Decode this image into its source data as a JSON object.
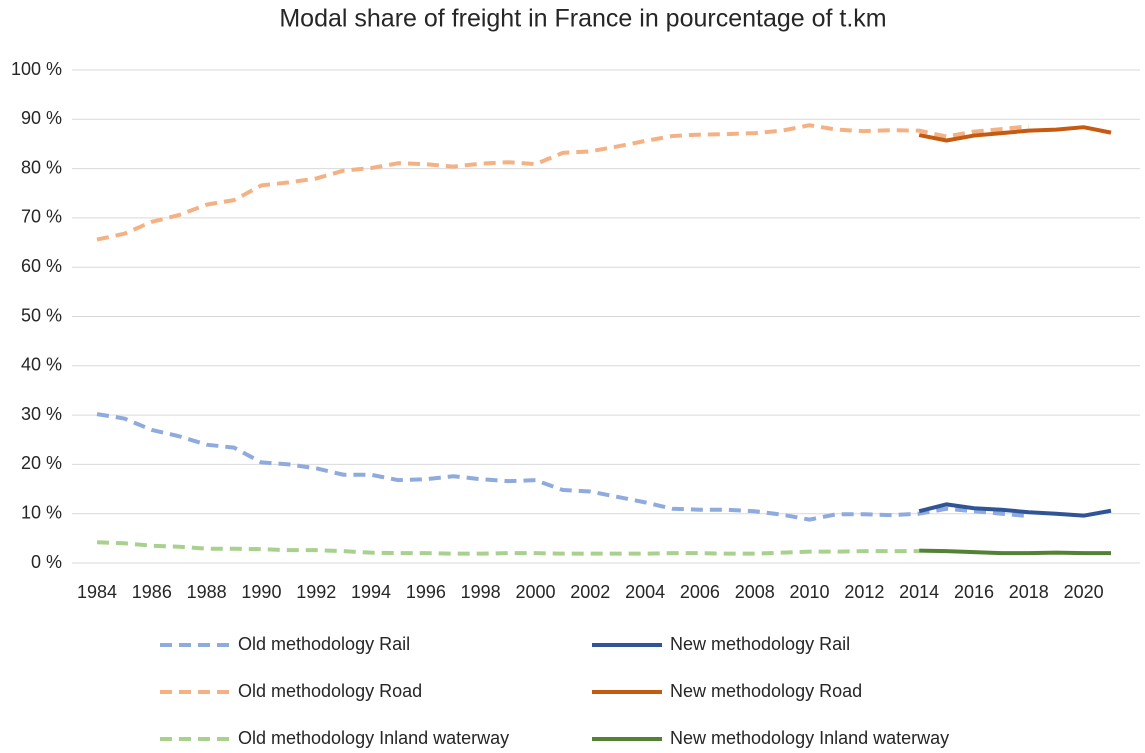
{
  "chart_data": {
    "type": "line",
    "title": "Modal share of freight in France in pourcentage of t.km",
    "x": [
      1984,
      1985,
      1986,
      1987,
      1988,
      1989,
      1990,
      1991,
      1992,
      1993,
      1994,
      1995,
      1996,
      1997,
      1998,
      1999,
      2000,
      2001,
      2002,
      2003,
      2004,
      2005,
      2006,
      2007,
      2008,
      2009,
      2010,
      2011,
      2012,
      2013,
      2014,
      2015,
      2016,
      2017,
      2018,
      2019,
      2020,
      2021
    ],
    "xlim": [
      1984,
      2021
    ],
    "xticks": [
      1984,
      1986,
      1988,
      1990,
      1992,
      1994,
      1996,
      1998,
      2000,
      2002,
      2004,
      2006,
      2008,
      2010,
      2012,
      2014,
      2016,
      2018,
      2020
    ],
    "ylim": [
      0,
      100
    ],
    "yticks": [
      {
        "value": 0,
        "label": "0 %"
      },
      {
        "value": 10,
        "label": "10 %"
      },
      {
        "value": 20,
        "label": "20 %"
      },
      {
        "value": 30,
        "label": "30 %"
      },
      {
        "value": 40,
        "label": "40 %"
      },
      {
        "value": 50,
        "label": "50 %"
      },
      {
        "value": 60,
        "label": "60 %"
      },
      {
        "value": 70,
        "label": "70 %"
      },
      {
        "value": 80,
        "label": "80 %"
      },
      {
        "value": 90,
        "label": "90 %"
      },
      {
        "value": 100,
        "label": "100 %"
      }
    ],
    "grid": true,
    "legend": "bottom",
    "series": [
      {
        "name": "Old methodology Rail",
        "color": "#8faadc",
        "dashed": true,
        "values": [
          30.2,
          29.3,
          27,
          25.7,
          24,
          23.4,
          20.4,
          20,
          19.2,
          17.9,
          17.9,
          16.8,
          17,
          17.6,
          17,
          16.6,
          16.8,
          14.8,
          14.5,
          13.4,
          12.3,
          11,
          10.8,
          10.8,
          10.5,
          9.8,
          8.8,
          9.9,
          9.9,
          9.7,
          10,
          11,
          10.5,
          10,
          9.5,
          null,
          null,
          null
        ]
      },
      {
        "name": "New methodology Rail",
        "color": "#2f5597",
        "dashed": false,
        "values": [
          null,
          null,
          null,
          null,
          null,
          null,
          null,
          null,
          null,
          null,
          null,
          null,
          null,
          null,
          null,
          null,
          null,
          null,
          null,
          null,
          null,
          null,
          null,
          null,
          null,
          null,
          null,
          null,
          null,
          null,
          10.5,
          11.9,
          11.1,
          10.8,
          10.3,
          10,
          9.6,
          10.6
        ]
      },
      {
        "name": "Old methodology Road",
        "color": "#f4b183",
        "dashed": true,
        "values": [
          65.6,
          66.8,
          69.2,
          70.6,
          72.7,
          73.6,
          76.6,
          77.2,
          78,
          79.6,
          80.1,
          81.1,
          80.9,
          80.4,
          81,
          81.3,
          80.9,
          83.2,
          83.5,
          84.5,
          85.6,
          86.6,
          86.9,
          87,
          87.2,
          87.7,
          88.8,
          87.9,
          87.6,
          87.8,
          87.7,
          86.5,
          87.5,
          88,
          88.6,
          null,
          null,
          null
        ]
      },
      {
        "name": "New methodology Road",
        "color": "#c55a11",
        "dashed": false,
        "values": [
          null,
          null,
          null,
          null,
          null,
          null,
          null,
          null,
          null,
          null,
          null,
          null,
          null,
          null,
          null,
          null,
          null,
          null,
          null,
          null,
          null,
          null,
          null,
          null,
          null,
          null,
          null,
          null,
          null,
          null,
          86.8,
          85.7,
          86.7,
          87.2,
          87.7,
          87.9,
          88.4,
          87.3
        ]
      },
      {
        "name": "Old methodology Inland waterway",
        "color": "#a9d18e",
        "dashed": true,
        "values": [
          4.2,
          4,
          3.5,
          3.3,
          2.9,
          2.9,
          2.8,
          2.6,
          2.6,
          2.4,
          2.1,
          2,
          2,
          1.9,
          1.9,
          2,
          2,
          1.9,
          1.9,
          1.9,
          1.9,
          2,
          2,
          1.9,
          1.9,
          2.1,
          2.3,
          2.3,
          2.4,
          2.4,
          2.4,
          null,
          null,
          null,
          null,
          null,
          null,
          null
        ]
      },
      {
        "name": "New methodology Inland waterway",
        "color": "#548235",
        "dashed": false,
        "values": [
          null,
          null,
          null,
          null,
          null,
          null,
          null,
          null,
          null,
          null,
          null,
          null,
          null,
          null,
          null,
          null,
          null,
          null,
          null,
          null,
          null,
          null,
          null,
          null,
          null,
          null,
          null,
          null,
          null,
          null,
          2.5,
          2.4,
          2.2,
          2,
          2,
          2.1,
          2,
          2
        ]
      }
    ]
  }
}
